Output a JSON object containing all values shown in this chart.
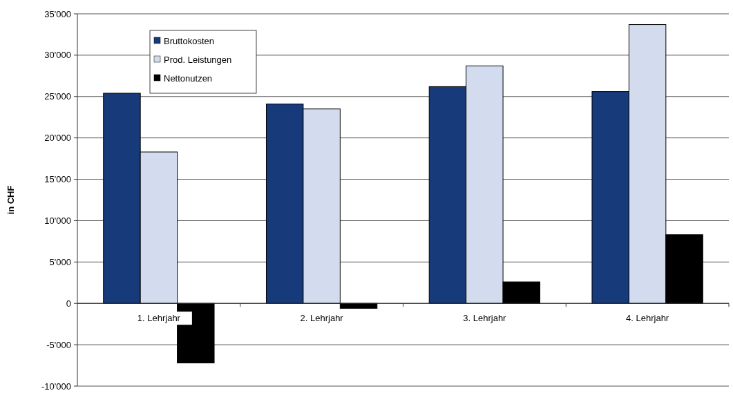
{
  "chart_data": {
    "type": "bar",
    "ylabel": "in CHF",
    "categories": [
      "1. Lehrjahr",
      "2. Lehrjahr",
      "3. Lehrjahr",
      "4. Lehrjahr"
    ],
    "series": [
      {
        "name": "Bruttokosten",
        "color": "#163a7a",
        "values": [
          25400,
          24100,
          26200,
          25600
        ]
      },
      {
        "name": "Prod. Leistungen",
        "color": "#d3dcee",
        "values": [
          18300,
          23500,
          28700,
          33700
        ]
      },
      {
        "name": "Nettonutzen",
        "color": "#000000",
        "values": [
          -7200,
          -600,
          2600,
          8300
        ]
      }
    ],
    "ylim": [
      -10000,
      35000
    ],
    "yticks": [
      {
        "value": -10000,
        "label": "-10'000"
      },
      {
        "value": -5000,
        "label": "-5'000"
      },
      0,
      {
        "value": 5000,
        "label": "5'000"
      },
      {
        "value": 10000,
        "label": "10'000"
      },
      {
        "value": 15000,
        "label": "15'000"
      },
      {
        "value": 20000,
        "label": "20'000"
      },
      {
        "value": 25000,
        "label": "25'000"
      },
      {
        "value": 30000,
        "label": "30'000"
      },
      {
        "value": 35000,
        "label": "35'000"
      }
    ],
    "grid": "y",
    "legend": "top left"
  }
}
